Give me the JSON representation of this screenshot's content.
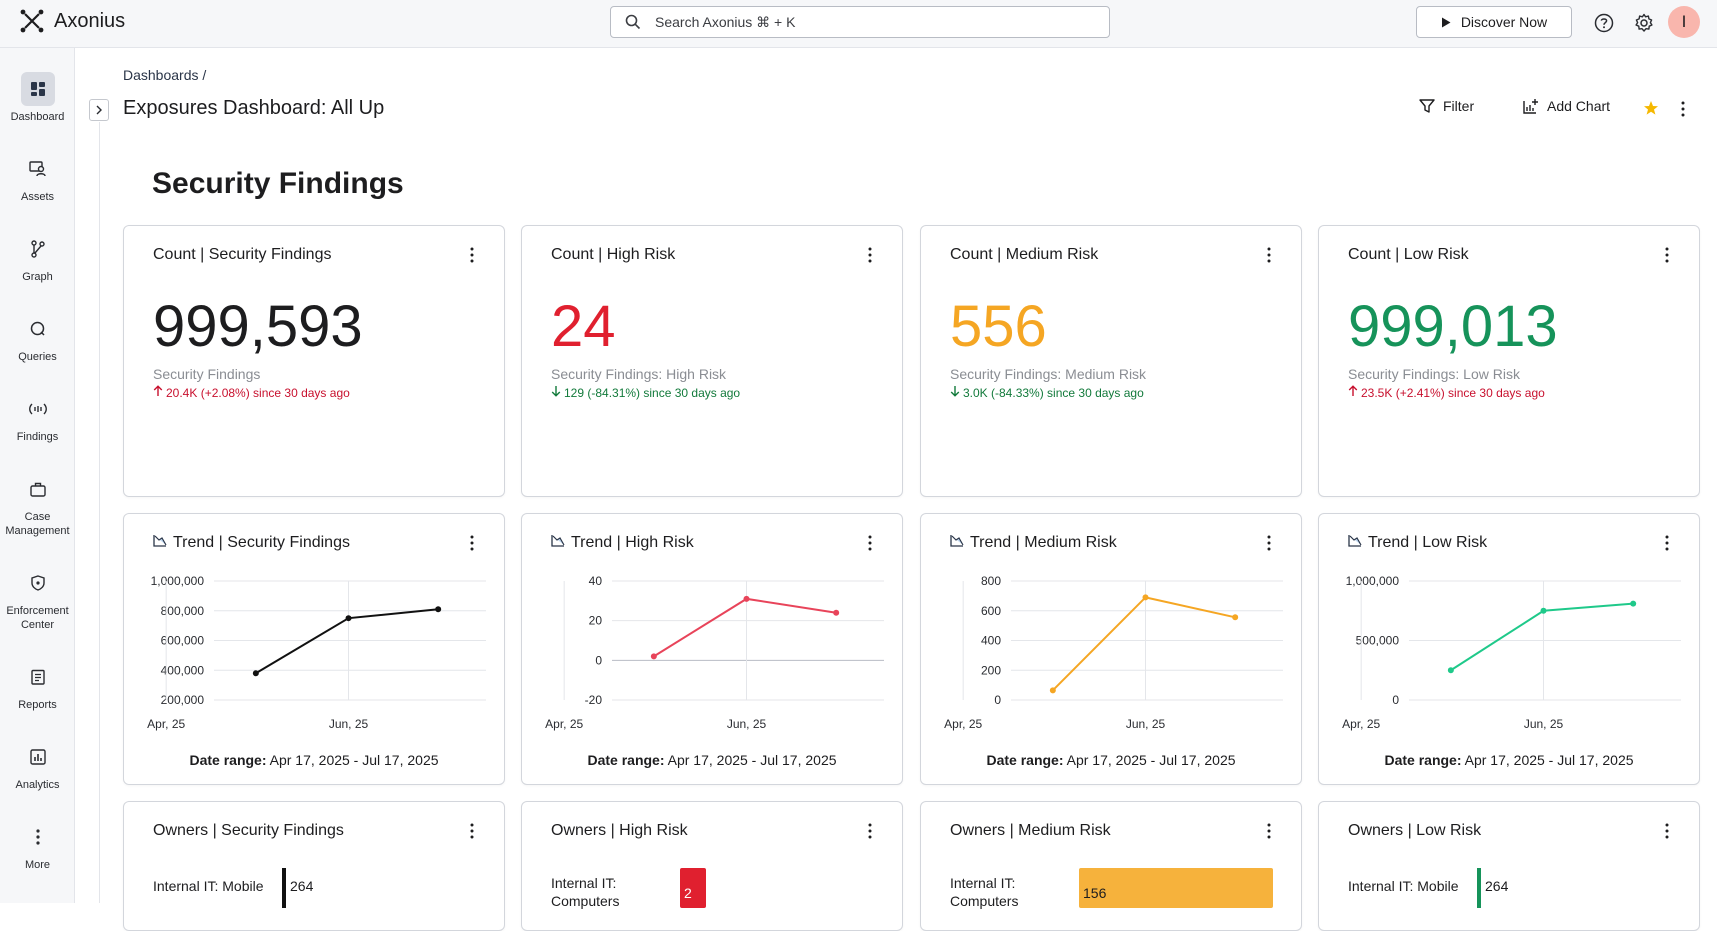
{
  "app": {
    "name": "Axonius"
  },
  "topbar": {
    "search_placeholder": "Search Axonius ⌘ + K",
    "discover_label": "Discover Now",
    "avatar_initial": "I"
  },
  "sidebar": {
    "items": [
      {
        "label": "Dashboard",
        "icon": "dashboard-icon",
        "active": true
      },
      {
        "label": "Assets",
        "icon": "assets-icon"
      },
      {
        "label": "Graph",
        "icon": "graph-icon"
      },
      {
        "label": "Queries",
        "icon": "queries-icon"
      },
      {
        "label": "Findings",
        "icon": "findings-icon"
      },
      {
        "label": "Case Management",
        "icon": "briefcase-icon"
      },
      {
        "label": "Enforcement Center",
        "icon": "shield-icon"
      },
      {
        "label": "Reports",
        "icon": "reports-icon"
      },
      {
        "label": "Analytics",
        "icon": "analytics-icon"
      },
      {
        "label": "More",
        "icon": "more-icon"
      }
    ]
  },
  "header": {
    "breadcrumb": "Dashboards /",
    "title": "Exposures Dashboard: All Up",
    "filter_label": "Filter",
    "add_chart_label": "Add Chart"
  },
  "section_title": "Security Findings",
  "count_cards": [
    {
      "title": "Count | Security Findings",
      "value": "999,593",
      "color": "#1d1d1f",
      "subtitle": "Security Findings",
      "delta": "20.4K (+2.08%) since 30 days ago",
      "direction": "up",
      "delta_color": "#c8102e"
    },
    {
      "title": "Count | High Risk",
      "value": "24",
      "color": "#e0202f",
      "subtitle": "Security Findings: High Risk",
      "delta": "129 (-84.31%) since 30 days ago",
      "direction": "down",
      "delta_color": "#127a3b"
    },
    {
      "title": "Count | Medium Risk",
      "value": "556",
      "color": "#f5a623",
      "subtitle": "Security Findings: Medium Risk",
      "delta": "3.0K (-84.33%) since 30 days ago",
      "direction": "down",
      "delta_color": "#127a3b"
    },
    {
      "title": "Count | Low Risk",
      "value": "999,013",
      "color": "#16935a",
      "subtitle": "Security Findings: Low Risk",
      "delta": "23.5K (+2.41%) since 30 days ago",
      "direction": "up",
      "delta_color": "#c8102e"
    }
  ],
  "chart_data": [
    {
      "type": "line",
      "title": "Trend | Security Findings",
      "color": "#111111",
      "x": [
        "2025-05-01",
        "2025-06-01",
        "2025-07-01"
      ],
      "y": [
        380000,
        750000,
        810000
      ],
      "yticks": [
        200000,
        400000,
        600000,
        800000,
        1000000
      ],
      "ytick_labels": [
        "200,000",
        "400,000",
        "600,000",
        "800,000",
        "1,000,000"
      ],
      "ylim": [
        200000,
        1000000
      ],
      "xtick_labels": [
        "Apr, 25",
        "Jun, 25"
      ],
      "grid": true,
      "date_range_label": "Date range:",
      "date_range_value": "Apr 17, 2025 - Jul 17, 2025"
    },
    {
      "type": "line",
      "title": "Trend | High Risk",
      "color": "#e8445a",
      "x": [
        "2025-05-01",
        "2025-06-01",
        "2025-07-01"
      ],
      "y": [
        2,
        31,
        24
      ],
      "yticks": [
        -20,
        0,
        20,
        40
      ],
      "ytick_labels": [
        "-20",
        "0",
        "20",
        "40"
      ],
      "ylim": [
        -20,
        40
      ],
      "xtick_labels": [
        "Apr, 25",
        "Jun, 25"
      ],
      "grid": true,
      "date_range_label": "Date range:",
      "date_range_value": "Apr 17, 2025 - Jul 17, 2025"
    },
    {
      "type": "line",
      "title": "Trend | Medium Risk",
      "color": "#f5a623",
      "x": [
        "2025-05-01",
        "2025-06-01",
        "2025-07-01"
      ],
      "y": [
        65,
        690,
        556
      ],
      "yticks": [
        0,
        200,
        400,
        600,
        800
      ],
      "ytick_labels": [
        "0",
        "200",
        "400",
        "600",
        "800"
      ],
      "ylim": [
        0,
        800
      ],
      "xtick_labels": [
        "Apr, 25",
        "Jun, 25"
      ],
      "grid": true,
      "date_range_label": "Date range:",
      "date_range_value": "Apr 17, 2025 - Jul 17, 2025"
    },
    {
      "type": "line",
      "title": "Trend | Low Risk",
      "color": "#1fc98a",
      "x": [
        "2025-05-01",
        "2025-06-01",
        "2025-07-01"
      ],
      "y": [
        250000,
        750000,
        810000
      ],
      "yticks": [
        0,
        500000,
        1000000
      ],
      "ytick_labels": [
        "0",
        "500,000",
        "1,000,000"
      ],
      "ylim": [
        0,
        1000000
      ],
      "xtick_labels": [
        "Apr, 25",
        "Jun, 25"
      ],
      "grid": true,
      "date_range_label": "Date range:",
      "date_range_value": "Apr 17, 2025 - Jul 17, 2025"
    }
  ],
  "owner_cards": [
    {
      "title": "Owners | Security Findings",
      "row_label": "Internal IT: Mobile",
      "value": "264",
      "bar_color": "#111111",
      "style": "line"
    },
    {
      "title": "Owners | High Risk",
      "row_label": "Internal IT: Computers",
      "value": "2",
      "bar_color": "#e0202f",
      "style": "block"
    },
    {
      "title": "Owners | Medium Risk",
      "row_label": "Internal IT: Computers",
      "value": "156",
      "bar_color": "#f6b23c",
      "style": "wide"
    },
    {
      "title": "Owners | Low Risk",
      "row_label": "Internal IT: Mobile",
      "value": "264",
      "bar_color": "#16935a",
      "style": "line"
    }
  ]
}
